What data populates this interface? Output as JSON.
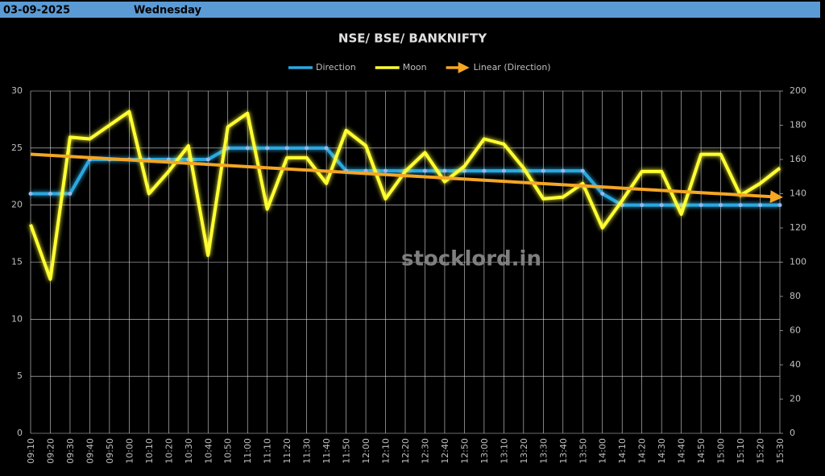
{
  "header": {
    "date": "03-09-2025",
    "day": "Wednesday"
  },
  "chart_data": {
    "type": "line",
    "title": "NSE/ BSE/ BANKNIFTY",
    "watermark": "stocklord.in",
    "categories": [
      "09:10",
      "09:20",
      "09:30",
      "09:40",
      "09:50",
      "10:00",
      "10:10",
      "10:20",
      "10:30",
      "10:40",
      "10:50",
      "11:00",
      "11:10",
      "11:20",
      "11:30",
      "11:40",
      "11:50",
      "12:00",
      "12:10",
      "12:20",
      "12:30",
      "12:40",
      "12:50",
      "13:00",
      "13:10",
      "13:20",
      "13:30",
      "13:40",
      "13:50",
      "14:00",
      "14:10",
      "14:20",
      "14:30",
      "14:40",
      "14:50",
      "15:00",
      "15:10",
      "15:20",
      "15:30"
    ],
    "series": [
      {
        "name": "Direction",
        "color": "#2aa8e0",
        "values": [
          21,
          21,
          21,
          24,
          24,
          24,
          24,
          24,
          24,
          24,
          25,
          25,
          25,
          25,
          25,
          25,
          23,
          23,
          23,
          23,
          23,
          23,
          23,
          23,
          23,
          23,
          23,
          23,
          23,
          21,
          20,
          20,
          20,
          20,
          20,
          20,
          20,
          20,
          20
        ]
      },
      {
        "name": "Moon",
        "color": "#ffff33",
        "axis": "y2",
        "values": [
          122,
          90,
          173,
          172,
          180,
          188,
          140,
          153,
          168,
          104,
          179,
          187,
          131,
          161,
          161,
          146,
          177,
          168,
          137,
          153,
          164,
          147,
          156,
          172,
          169,
          155,
          137,
          138,
          146,
          120,
          136,
          153,
          153,
          128,
          163,
          163,
          139,
          146,
          155
        ]
      }
    ],
    "trendline": {
      "name": "Linear (Direction)",
      "color": "#f5a623",
      "type": "linear"
    },
    "ylim": [
      0,
      30
    ],
    "yticks": [
      0,
      5,
      10,
      15,
      20,
      25,
      30
    ],
    "y2lim": [
      0,
      200
    ],
    "y2ticks": [
      0,
      20,
      40,
      60,
      80,
      100,
      120,
      140,
      160,
      180,
      200
    ],
    "grid": true,
    "legend": "top"
  }
}
